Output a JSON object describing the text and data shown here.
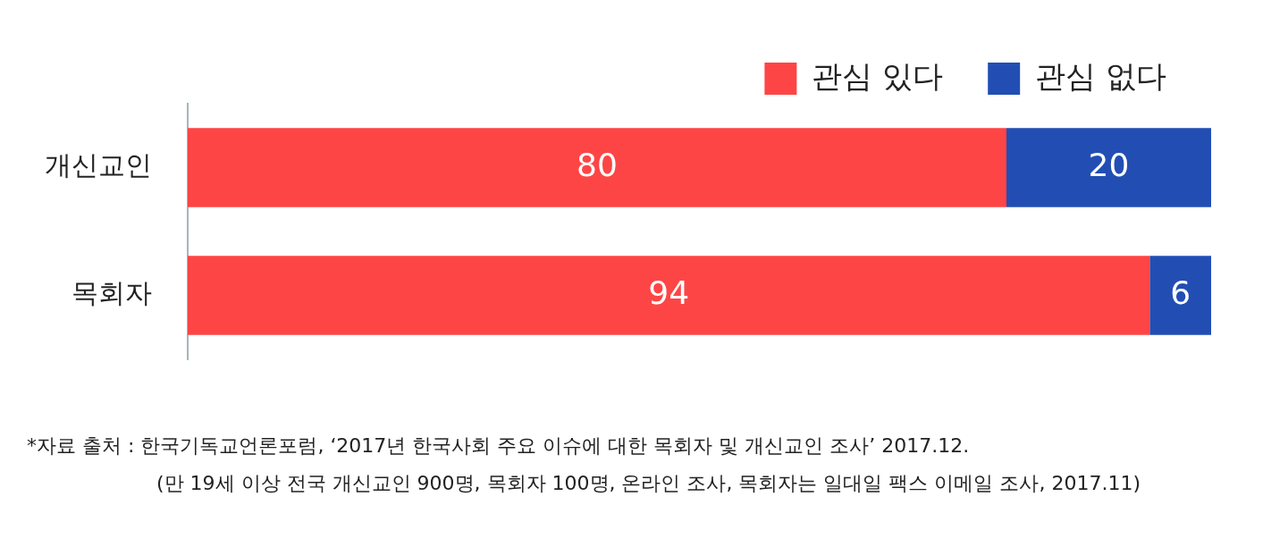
{
  "chart_data": {
    "type": "bar",
    "orientation": "horizontal",
    "stacked": true,
    "categories": [
      "개신교인",
      "목회자"
    ],
    "series": [
      {
        "name": "관심 있다",
        "color": "#fe4545",
        "values": [
          80,
          94
        ]
      },
      {
        "name": "관심 없다",
        "color": "#224eb4",
        "values": [
          20,
          6
        ]
      }
    ],
    "xlim": [
      0,
      100
    ],
    "tick_labels": "y",
    "legend": "top right",
    "data_labels": true,
    "annotations": [
      "*자료 출처 : 한국기독교언론포럼, ‘2017년 한국사회 주요 이슈에 대한 목회자 및 개신교인 조사’ 2017.12.",
      "(만 19세 이상 전국 개신교인 900명, 목회자 100명, 온라인 조사, 목회자는 일대일 팩스 이메일 조사, 2017.11)"
    ]
  }
}
